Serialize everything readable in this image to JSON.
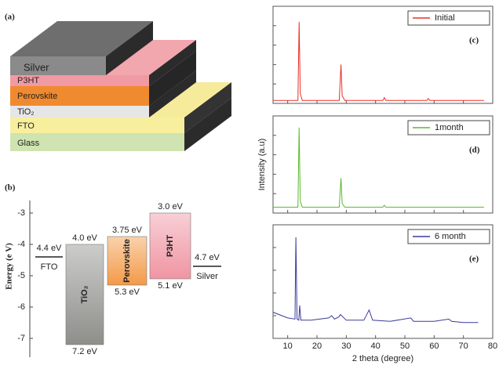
{
  "diagram": {
    "label": "(a)",
    "layers": [
      "Silver",
      "P3HT",
      "Perovskite",
      "TiO₂",
      "FTO",
      "Glass"
    ]
  },
  "chart_data": [
    {
      "type": "band",
      "label": "(b)",
      "y_label": "Energy (e V)",
      "ylim": [
        -7.6,
        -2.6
      ],
      "yticks": [
        -3,
        -4,
        -5,
        -6,
        -7
      ],
      "bands": [
        {
          "name": "FTO",
          "level": -4.4,
          "level_label": "4.4 eV",
          "color": "#222222"
        },
        {
          "name": "TiO₂",
          "top": -4.0,
          "bottom": -7.2,
          "top_label": "4.0 eV",
          "bottom_label": "7.2 eV",
          "color": "#8e8e8a"
        },
        {
          "name": "Perovskite",
          "top": -3.75,
          "bottom": -5.3,
          "top_label": "3.75 eV",
          "bottom_label": "5.3 eV",
          "color": "#f39a48"
        },
        {
          "name": "P3HT",
          "top": -3.0,
          "bottom": -5.1,
          "top_label": "3.0 eV",
          "bottom_label": "5.1 eV",
          "color": "#f095a3"
        },
        {
          "name": "Silver",
          "level": -4.7,
          "level_label": "4.7 eV",
          "color": "#222222"
        }
      ]
    },
    {
      "type": "line",
      "x_label": "2 theta (degree)",
      "y_label": "Intensity (a.u)",
      "xlim": [
        5,
        80
      ],
      "xticks": [
        10,
        20,
        30,
        40,
        50,
        60,
        70,
        80
      ],
      "panels": [
        {
          "label": "(c)",
          "ylim": [
            0,
            100
          ],
          "yticks": [
            20,
            40,
            60,
            80
          ],
          "series": [
            {
              "name": "Initial",
              "color": "#e8302a",
              "x": [
                5,
                10,
                13.5,
                13.9,
                14.3,
                15,
                20,
                27.6,
                28.2,
                28.6,
                29.5,
                35,
                42.5,
                43,
                43.5,
                50,
                57.5,
                58,
                58.5,
                65,
                77
              ],
              "values": [
                3,
                3,
                3,
                84,
                10,
                3,
                3,
                3,
                40,
                8,
                3,
                3,
                3,
                6,
                3,
                3,
                3,
                5,
                3,
                3,
                3
              ]
            }
          ]
        },
        {
          "label": "(d)",
          "ylim": [
            0,
            100
          ],
          "yticks": [
            20,
            40,
            60,
            80
          ],
          "series": [
            {
              "name": "1month",
              "color": "#5cb82e",
              "x": [
                5,
                10,
                13.5,
                13.9,
                14.3,
                15,
                20,
                27.6,
                28.2,
                28.6,
                29.5,
                35,
                42.5,
                43,
                43.5,
                50,
                60,
                70,
                77
              ],
              "values": [
                6,
                6,
                6,
                88,
                12,
                6,
                6,
                6,
                36,
                10,
                6,
                6,
                6,
                8,
                6,
                6,
                6,
                6,
                6
              ]
            }
          ]
        },
        {
          "label": "(e)",
          "ylim": [
            0,
            100
          ],
          "yticks": [
            20,
            40,
            60,
            80
          ],
          "series": [
            {
              "name": "6 month",
              "color": "#3a3a9c",
              "x": [
                5,
                8,
                10,
                12.5,
                12.8,
                13.2,
                13.8,
                14.1,
                14.5,
                18,
                24,
                25,
                26,
                27.5,
                28,
                30,
                36,
                37.8,
                38.2,
                39,
                45,
                52,
                53,
                60,
                65,
                66,
                70,
                75
              ],
              "values": [
                23,
                20,
                18,
                17,
                89,
                17,
                16,
                29,
                16,
                16,
                18,
                20,
                17,
                19,
                21,
                16,
                16,
                25,
                22,
                16,
                15,
                18,
                15,
                15,
                17,
                15,
                14,
                14
              ]
            }
          ]
        }
      ]
    }
  ]
}
